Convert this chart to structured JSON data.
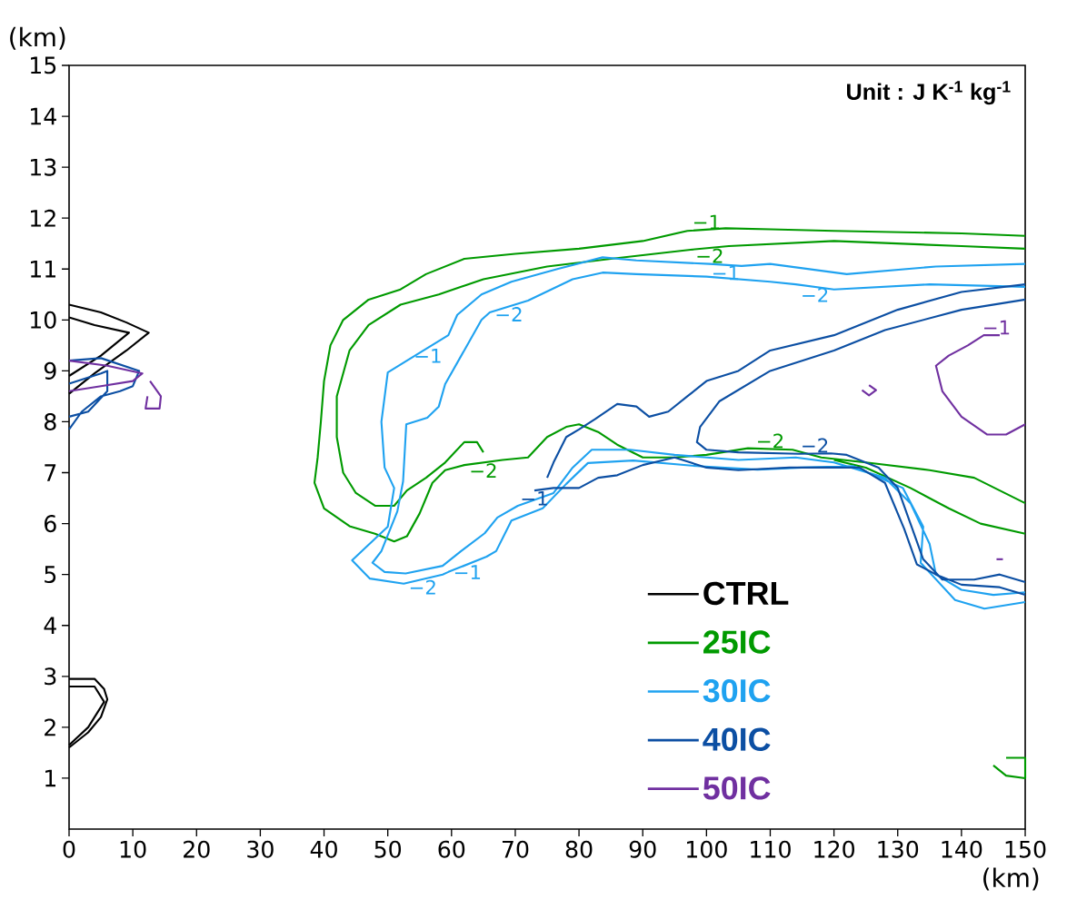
{
  "chart_data": {
    "type": "line",
    "xlabel": "(km)",
    "ylabel": "(km)",
    "xlim": [
      0,
      150
    ],
    "ylim": [
      0,
      15
    ],
    "xticks": [
      0,
      10,
      20,
      30,
      40,
      50,
      60,
      70,
      80,
      90,
      100,
      110,
      120,
      130,
      140,
      150
    ],
    "yticks": [
      1,
      2,
      3,
      4,
      5,
      6,
      7,
      8,
      9,
      10,
      11,
      12,
      13,
      14,
      15
    ],
    "grid": false,
    "legend": "bottom right",
    "marker": "none",
    "line_style": "solid",
    "series": [
      {
        "name": "CTRL",
        "color": "#000000",
        "x": [
          0,
          5,
          9,
          12.5,
          9,
          4,
          0,
          null,
          0,
          4,
          9.4,
          5,
          0,
          null,
          0,
          4,
          5.5,
          6,
          5,
          3,
          0,
          null,
          0,
          4,
          5.5,
          3,
          0
        ],
        "values": [
          10.3,
          10.15,
          9.95,
          9.75,
          9.4,
          8.95,
          8.55,
          null,
          10.05,
          9.9,
          9.75,
          9.3,
          8.9,
          null,
          2.95,
          2.95,
          2.75,
          2.55,
          2.2,
          1.9,
          1.6,
          null,
          2.8,
          2.8,
          2.5,
          2.0,
          1.65
        ]
      },
      {
        "name": "25IC",
        "color": "#009a00",
        "x": [
          150,
          140,
          120,
          110,
          103,
          97,
          90,
          80,
          70,
          62,
          56,
          52,
          47,
          43,
          41,
          40,
          39.5,
          39,
          38.5,
          40,
          44,
          48,
          51,
          53,
          55,
          57,
          59,
          62,
          68,
          72,
          75,
          78,
          80,
          83,
          86,
          90,
          95,
          100,
          106.5,
          113.5,
          118,
          125,
          135,
          142,
          150,
          null,
          150,
          140,
          120,
          103.5,
          97.5,
          85,
          75,
          65,
          58,
          52,
          47,
          44,
          42,
          42,
          43,
          45,
          48,
          51,
          53,
          56,
          59,
          62,
          64,
          65,
          null,
          120,
          125,
          132,
          138,
          143,
          150
        ],
        "values": [
          11.65,
          11.7,
          11.75,
          11.78,
          11.8,
          11.75,
          11.55,
          11.4,
          11.3,
          11.2,
          10.9,
          10.6,
          10.4,
          10.0,
          9.5,
          8.8,
          8.0,
          7.3,
          6.8,
          6.3,
          5.95,
          5.8,
          5.65,
          5.75,
          6.2,
          6.8,
          7.05,
          7.15,
          7.25,
          7.3,
          7.7,
          7.9,
          7.95,
          7.8,
          7.55,
          7.3,
          7.3,
          7.35,
          7.48,
          7.45,
          7.3,
          7.2,
          7.05,
          6.9,
          6.4,
          null,
          11.4,
          11.45,
          11.55,
          11.45,
          11.38,
          11.2,
          11.05,
          10.8,
          10.5,
          10.3,
          9.9,
          9.4,
          8.5,
          7.7,
          7.0,
          6.6,
          6.35,
          6.35,
          6.65,
          6.9,
          7.2,
          7.6,
          7.6,
          7.4,
          null,
          7.25,
          7.1,
          6.7,
          6.3,
          6.0,
          5.8
        ]
      },
      {
        "color": "#009a00",
        "x": [
          145,
          147,
          150,
          150,
          147
        ],
        "values": [
          1.25,
          1.05,
          1.0,
          1.4,
          1.4
        ]
      },
      {
        "name": "30IC",
        "color": "#1fa2f0",
        "x": [
          150,
          136,
          122,
          110,
          105.5,
          100.5,
          89,
          83.7,
          76.6,
          69.4,
          64.7,
          60.9,
          59.5,
          53,
          50,
          49,
          49.5,
          51,
          50,
          44.4,
          47.2,
          52.5,
          58.6,
          59.5,
          65.5,
          67,
          69.4,
          74.3,
          78,
          81.4,
          88.5,
          98.5,
          108,
          115,
          123,
          130.8,
          134,
          133.6,
          139,
          143.6,
          150,
          null,
          150,
          135,
          120,
          114,
          110,
          100,
          89,
          83.7,
          79,
          72,
          66,
          64.7,
          59,
          58,
          56.2,
          52.9,
          52.4,
          51.5,
          49,
          47.6,
          49.5,
          52.8,
          58.6,
          61.5,
          65.2,
          67.2,
          70.4,
          76,
          79,
          82,
          88,
          95,
          105,
          114,
          120,
          128,
          132,
          135,
          136,
          140,
          145,
          150
        ],
        "values": [
          11.1,
          11.05,
          10.9,
          11.1,
          11.06,
          11.1,
          11.17,
          11.23,
          11.0,
          10.75,
          10.5,
          10.1,
          9.7,
          9.2,
          8.97,
          8.0,
          7.1,
          6.7,
          5.94,
          5.28,
          4.92,
          4.82,
          5.0,
          5.05,
          5.35,
          5.46,
          6.06,
          6.3,
          6.78,
          7.19,
          7.24,
          7.13,
          7.06,
          7.1,
          7.13,
          6.7,
          5.94,
          5.23,
          4.5,
          4.33,
          4.46,
          null,
          10.65,
          10.7,
          10.6,
          10.7,
          10.75,
          10.85,
          10.9,
          10.93,
          10.8,
          10.38,
          10.15,
          10.0,
          8.74,
          8.3,
          8.08,
          7.95,
          6.83,
          6.24,
          5.46,
          5.23,
          5.05,
          5.02,
          5.17,
          5.46,
          5.81,
          6.12,
          6.35,
          6.6,
          7.1,
          7.45,
          7.45,
          7.35,
          7.25,
          7.3,
          7.2,
          6.9,
          6.4,
          5.6,
          5.0,
          4.7,
          4.6,
          4.65
        ]
      },
      {
        "name": "40IC",
        "color": "#0c4fa3",
        "x": [
          150,
          140,
          130,
          120,
          110,
          105,
          100,
          97,
          94,
          91,
          89,
          86,
          82.5,
          80,
          78,
          76,
          75,
          null,
          150,
          140,
          128,
          120,
          110,
          102,
          99,
          98.5,
          100,
          105,
          114.5,
          119.5,
          122,
          127,
          130,
          132,
          134,
          137,
          142,
          146,
          150,
          null,
          150,
          146,
          140,
          136,
          133,
          131,
          128,
          124,
          113,
          105,
          100,
          95,
          90,
          86,
          83,
          80,
          76,
          73,
          null,
          0,
          5,
          11,
          10,
          8,
          5,
          2,
          0,
          null,
          0,
          5,
          6,
          6,
          3,
          0
        ],
        "values": [
          10.7,
          10.55,
          10.2,
          9.7,
          9.4,
          9.0,
          8.8,
          8.5,
          8.2,
          8.1,
          8.3,
          8.35,
          8.05,
          7.85,
          7.7,
          7.2,
          6.9,
          null,
          10.4,
          10.2,
          9.8,
          9.4,
          9.0,
          8.4,
          7.9,
          7.6,
          7.45,
          7.4,
          7.37,
          7.38,
          7.35,
          7.1,
          6.7,
          6.0,
          5.3,
          4.9,
          4.9,
          5.0,
          4.85,
          null,
          4.6,
          4.75,
          4.8,
          5.0,
          5.2,
          5.9,
          6.8,
          7.1,
          7.1,
          7.05,
          7.1,
          7.3,
          7.15,
          6.95,
          6.9,
          6.7,
          6.7,
          6.65,
          null,
          9.2,
          9.25,
          9.0,
          8.7,
          8.6,
          8.5,
          8.2,
          7.85,
          null,
          8.75,
          8.95,
          9.0,
          8.6,
          8.2,
          8.1
        ]
      },
      {
        "name": "50IC",
        "color": "#7030a0",
        "x": [
          0,
          6,
          11.5,
          10,
          5,
          0,
          null,
          150,
          147,
          144,
          140,
          137,
          136,
          138,
          141,
          143.5,
          146
        ],
        "values": [
          9.2,
          9.1,
          8.95,
          8.8,
          8.7,
          8.6,
          null,
          7.95,
          7.75,
          7.75,
          8.1,
          8.6,
          9.1,
          9.3,
          9.5,
          9.7,
          9.7
        ]
      },
      {
        "color": "#7030a0",
        "x": [
          12.7,
          14.4,
          14.2,
          12,
          12.3
        ],
        "values": [
          8.8,
          8.5,
          8.26,
          8.26,
          8.5
        ]
      },
      {
        "color": "#7030a0",
        "x": [
          125.5,
          126.6,
          125.5,
          124.4
        ],
        "values": [
          8.72,
          8.62,
          8.52,
          8.62
        ]
      },
      {
        "color": "#7030a0",
        "x": [
          145.5,
          146.5
        ],
        "values": [
          5.3,
          5.3
        ]
      }
    ],
    "annotations": [
      "**Unit : J K$^{-1}$ kg$^{-1}$**",
      {
        "text": "−1",
        "x": 100,
        "y": 11.77
      },
      {
        "text": "−2",
        "x": 100.5,
        "y": 11.42
      },
      {
        "text": "−2",
        "x": 65,
        "y": 7.2
      },
      {
        "text": "−2",
        "x": 110,
        "y": 7.47
      },
      {
        "text": "−1",
        "x": 56.3,
        "y": 9.45
      },
      {
        "text": "−2",
        "x": 69,
        "y": 10.27
      },
      {
        "text": "−1",
        "x": 103,
        "y": 11.08
      },
      {
        "text": "−2",
        "x": 117,
        "y": 10.65
      },
      {
        "text": "−2",
        "x": 55.5,
        "y": 4.91
      },
      {
        "text": "−1",
        "x": 62.5,
        "y": 5.2
      },
      {
        "text": "−1",
        "x": 73,
        "y": 6.65
      },
      {
        "text": "−2",
        "x": 117,
        "y": 7.38
      },
      {
        "text": "−1",
        "x": 145.5,
        "y": 9.7
      }
    ]
  }
}
